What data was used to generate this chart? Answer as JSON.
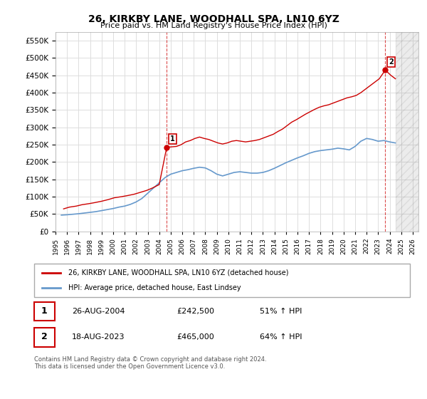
{
  "title": "26, KIRKBY LANE, WOODHALL SPA, LN10 6YZ",
  "subtitle": "Price paid vs. HM Land Registry's House Price Index (HPI)",
  "ylabel": "",
  "ylim": [
    0,
    575000
  ],
  "yticks": [
    0,
    50000,
    100000,
    150000,
    200000,
    250000,
    300000,
    350000,
    400000,
    450000,
    500000,
    550000
  ],
  "xlim_start": 1995.5,
  "xlim_end": 2026.5,
  "red_line_color": "#cc0000",
  "blue_line_color": "#6699cc",
  "grid_color": "#dddddd",
  "annotation_line_color": "#cc0000",
  "marker1_year": 2004.65,
  "marker1_price": 242500,
  "marker2_year": 2023.62,
  "marker2_price": 465000,
  "legend_label_red": "26, KIRKBY LANE, WOODHALL SPA, LN10 6YZ (detached house)",
  "legend_label_blue": "HPI: Average price, detached house, East Lindsey",
  "footnote": "Contains HM Land Registry data © Crown copyright and database right 2024.\nThis data is licensed under the Open Government Licence v3.0.",
  "table": [
    {
      "num": "1",
      "date": "26-AUG-2004",
      "price": "£242,500",
      "hpi": "51% ↑ HPI"
    },
    {
      "num": "2",
      "date": "18-AUG-2023",
      "price": "£465,000",
      "hpi": "64% ↑ HPI"
    }
  ],
  "hpi_data": {
    "years": [
      1995.5,
      1996.0,
      1996.5,
      1997.0,
      1997.5,
      1998.0,
      1998.5,
      1999.0,
      1999.5,
      2000.0,
      2000.5,
      2001.0,
      2001.5,
      2002.0,
      2002.5,
      2003.0,
      2003.5,
      2004.0,
      2004.5,
      2005.0,
      2005.5,
      2006.0,
      2006.5,
      2007.0,
      2007.5,
      2008.0,
      2008.5,
      2009.0,
      2009.5,
      2010.0,
      2010.5,
      2011.0,
      2011.5,
      2012.0,
      2012.5,
      2013.0,
      2013.5,
      2014.0,
      2014.5,
      2015.0,
      2015.5,
      2016.0,
      2016.5,
      2017.0,
      2017.5,
      2018.0,
      2018.5,
      2019.0,
      2019.5,
      2020.0,
      2020.5,
      2021.0,
      2021.5,
      2022.0,
      2022.5,
      2023.0,
      2023.5,
      2024.0,
      2024.5
    ],
    "values": [
      47000,
      48000,
      49500,
      51000,
      53000,
      55000,
      57000,
      60000,
      63000,
      66000,
      70000,
      73000,
      78000,
      85000,
      95000,
      110000,
      125000,
      140000,
      155000,
      165000,
      170000,
      175000,
      178000,
      182000,
      185000,
      183000,
      175000,
      165000,
      160000,
      165000,
      170000,
      172000,
      170000,
      168000,
      168000,
      170000,
      175000,
      182000,
      190000,
      198000,
      205000,
      212000,
      218000,
      225000,
      230000,
      233000,
      235000,
      237000,
      240000,
      238000,
      235000,
      245000,
      260000,
      268000,
      265000,
      260000,
      262000,
      258000,
      255000
    ]
  },
  "price_data": {
    "years": [
      1995.7,
      1996.2,
      1996.8,
      1997.3,
      1997.9,
      1998.4,
      1999.0,
      1999.6,
      2000.1,
      2000.7,
      2001.2,
      2001.8,
      2002.3,
      2002.9,
      2003.4,
      2004.0,
      2004.65,
      2005.5,
      2005.9,
      2006.3,
      2006.7,
      2007.1,
      2007.5,
      2007.9,
      2008.3,
      2008.7,
      2009.1,
      2009.5,
      2009.9,
      2010.3,
      2010.7,
      2011.1,
      2011.5,
      2011.9,
      2012.3,
      2012.7,
      2013.1,
      2013.5,
      2013.9,
      2014.3,
      2014.7,
      2015.1,
      2015.5,
      2015.9,
      2016.3,
      2016.7,
      2017.1,
      2017.5,
      2017.9,
      2018.3,
      2018.7,
      2019.1,
      2019.5,
      2019.9,
      2020.3,
      2020.7,
      2021.1,
      2021.5,
      2021.9,
      2022.3,
      2022.7,
      2023.1,
      2023.62,
      2024.1,
      2024.5
    ],
    "values": [
      65000,
      70000,
      73000,
      77000,
      80000,
      83000,
      87000,
      92000,
      97000,
      100000,
      103000,
      107000,
      112000,
      118000,
      125000,
      135000,
      242500,
      245000,
      250000,
      258000,
      262000,
      268000,
      272000,
      268000,
      265000,
      260000,
      255000,
      252000,
      255000,
      260000,
      262000,
      260000,
      258000,
      260000,
      262000,
      265000,
      270000,
      275000,
      280000,
      288000,
      295000,
      305000,
      315000,
      322000,
      330000,
      338000,
      345000,
      352000,
      358000,
      362000,
      365000,
      370000,
      375000,
      380000,
      385000,
      388000,
      392000,
      400000,
      410000,
      420000,
      430000,
      440000,
      465000,
      450000,
      440000
    ]
  }
}
